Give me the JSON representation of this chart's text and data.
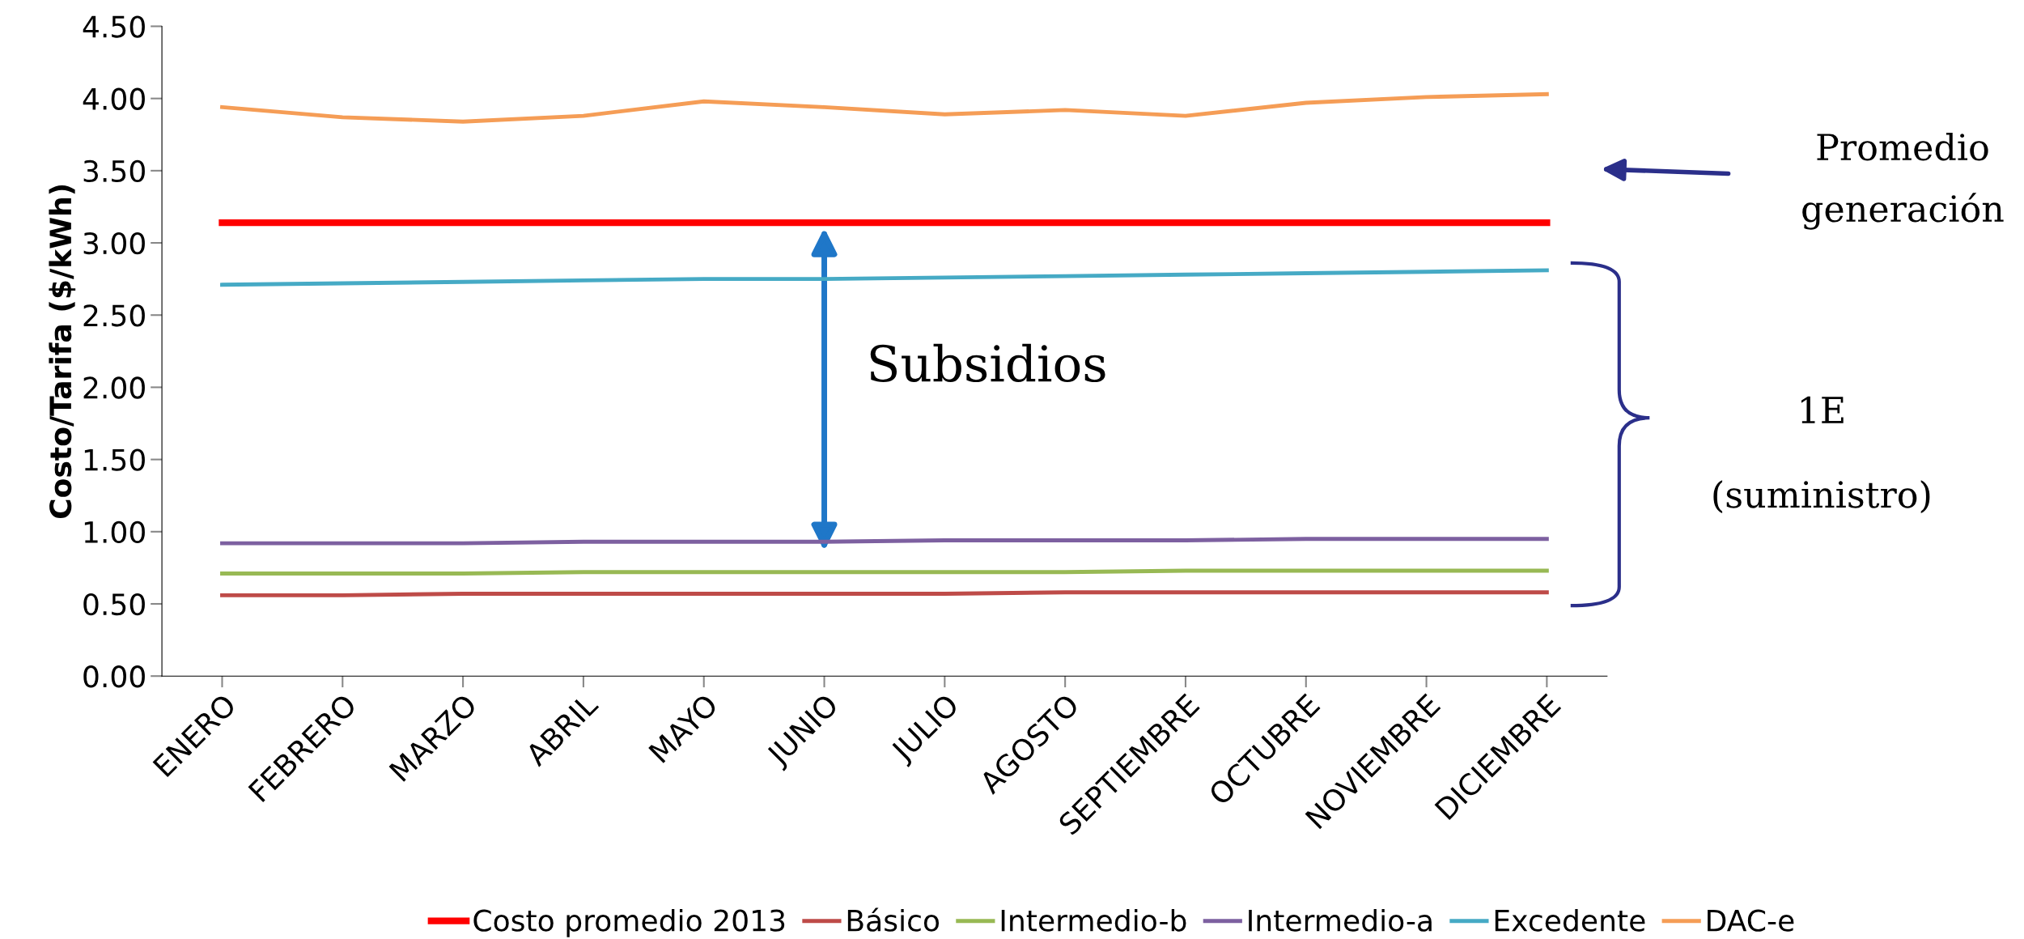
{
  "chart_data": {
    "type": "line",
    "ylabel": "Costo/Tarifa ($/kWh)",
    "categories": [
      "ENERO",
      "FEBRERO",
      "MARZO",
      "ABRIL",
      "MAYO",
      "JUNIO",
      "JULIO",
      "AGOSTO",
      "SEPTIEMBRE",
      "OCTUBRE",
      "NOVIEMBRE",
      "DICIEMBRE"
    ],
    "series": [
      {
        "name": "Costo promedio 2013",
        "color": "#ff0000",
        "values": [
          3.14,
          3.14,
          3.14,
          3.14,
          3.14,
          3.14,
          3.14,
          3.14,
          3.14,
          3.14,
          3.14,
          3.14
        ]
      },
      {
        "name": "Básico",
        "color": "#be4b48",
        "values": [
          0.56,
          0.56,
          0.57,
          0.57,
          0.57,
          0.57,
          0.57,
          0.58,
          0.58,
          0.58,
          0.58,
          0.58
        ]
      },
      {
        "name": "Intermedio-b",
        "color": "#98b954",
        "values": [
          0.71,
          0.71,
          0.71,
          0.72,
          0.72,
          0.72,
          0.72,
          0.72,
          0.73,
          0.73,
          0.73,
          0.73
        ]
      },
      {
        "name": "Intermedio-a",
        "color": "#7d60a0",
        "values": [
          0.92,
          0.92,
          0.92,
          0.93,
          0.93,
          0.93,
          0.94,
          0.94,
          0.94,
          0.95,
          0.95,
          0.95
        ]
      },
      {
        "name": "Excedente",
        "color": "#46aac5",
        "values": [
          2.71,
          2.72,
          2.73,
          2.74,
          2.75,
          2.75,
          2.76,
          2.77,
          2.78,
          2.79,
          2.8,
          2.81
        ]
      },
      {
        "name": "DAC-e",
        "color": "#f59d56",
        "values": [
          3.94,
          3.87,
          3.84,
          3.88,
          3.98,
          3.94,
          3.89,
          3.92,
          3.88,
          3.97,
          4.01,
          4.03
        ]
      }
    ],
    "ylim": [
      0,
      4.5
    ],
    "yticks": [
      {
        "value": 0,
        "label": "0.00"
      },
      {
        "value": 0.5,
        "label": "0.50"
      },
      {
        "value": 1,
        "label": "1.00"
      },
      {
        "value": 1.5,
        "label": "1.50"
      },
      {
        "value": 2,
        "label": "2.00"
      },
      {
        "value": 2.5,
        "label": "2.50"
      },
      {
        "value": 3,
        "label": "3.00"
      },
      {
        "value": 3.5,
        "label": "3.50"
      },
      {
        "value": 4,
        "label": "4.00"
      },
      {
        "value": 4.5,
        "label": "4.50"
      }
    ],
    "grid": false,
    "legend": "bottom",
    "marker": "none",
    "line_style": "solid",
    "annotations": [
      "Subsidios",
      "Promedio generación",
      "1E (suministro)"
    ]
  }
}
